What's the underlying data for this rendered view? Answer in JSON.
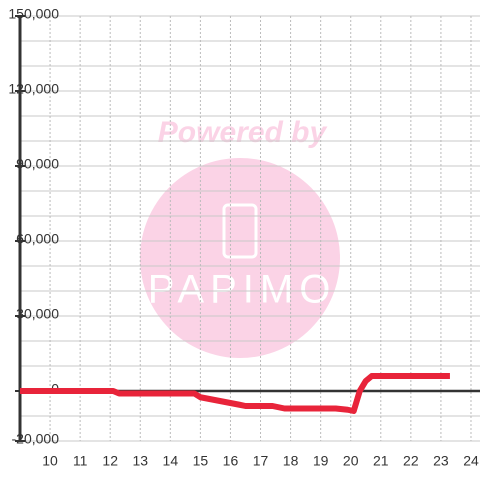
{
  "chart_data": {
    "type": "line",
    "watermark": {
      "top": "Powered by",
      "logo": "PAPIMO"
    },
    "x": [
      9,
      12.1,
      12.3,
      14.8,
      15.0,
      16.3,
      16.5,
      17.4,
      17.8,
      19.5,
      19.9,
      20.1,
      20.3,
      20.5,
      20.7,
      23.3
    ],
    "series": [
      {
        "color": "#e8243a",
        "values": [
          0,
          0,
          -1000,
          -1000,
          -2500,
          -5500,
          -6000,
          -6000,
          -7000,
          -7000,
          -7500,
          -8000,
          0,
          4000,
          6000,
          6000
        ]
      }
    ],
    "xlim": [
      9,
      24.3
    ],
    "xticks": [
      10,
      11,
      12,
      13,
      14,
      15,
      16,
      17,
      18,
      19,
      20,
      21,
      22,
      23,
      24
    ],
    "ylim": [
      -20000,
      150000
    ],
    "yticks": [
      {
        "value": -20000,
        "label": "-20,000"
      },
      0,
      {
        "value": 30000,
        "label": "30,000"
      },
      {
        "value": 60000,
        "label": "60,000"
      },
      {
        "value": 90000,
        "label": "90,000"
      },
      {
        "value": 120000,
        "label": "120,000"
      },
      {
        "value": 150000,
        "label": "150,000"
      }
    ],
    "ygrid": [
      -20000,
      -10000,
      0,
      10000,
      20000,
      30000,
      40000,
      50000,
      60000,
      70000,
      80000,
      90000,
      100000,
      110000,
      120000,
      130000,
      140000,
      150000
    ],
    "grid": true
  }
}
